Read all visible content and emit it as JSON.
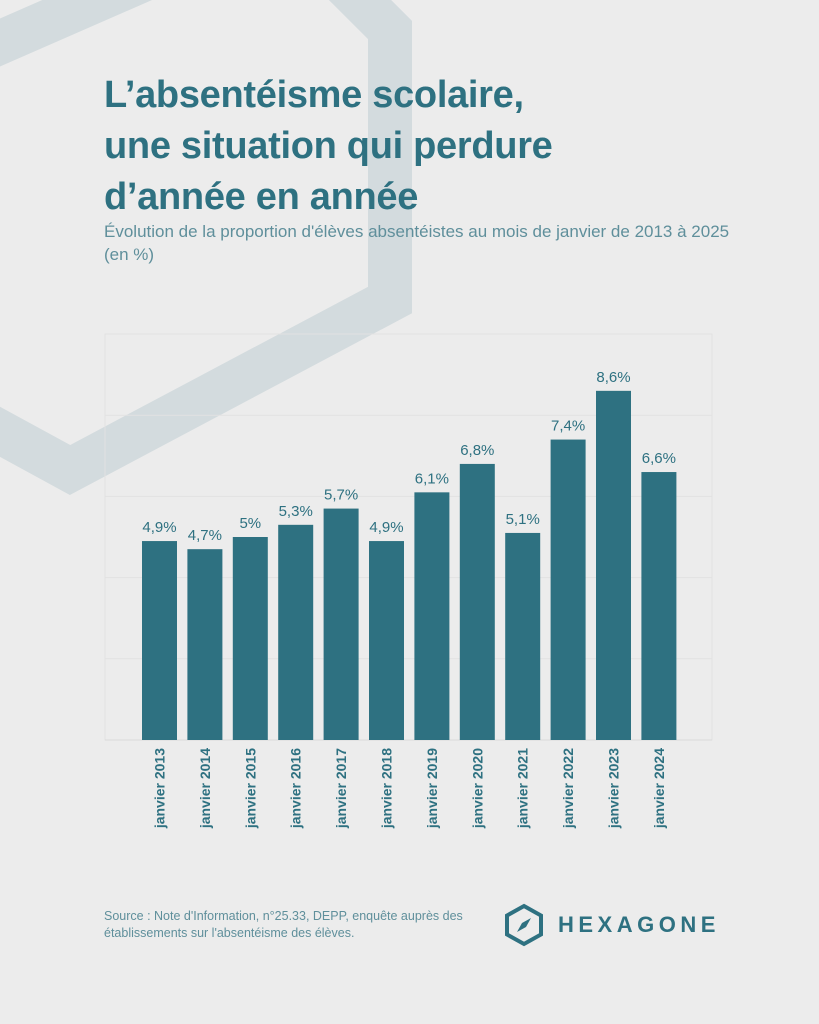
{
  "header": {
    "title_lines": [
      "L’absentéisme scolaire,",
      "une situation qui perdure",
      "d’année en année"
    ],
    "subtitle": "Évolution de la proportion d'élèves absentéistes au mois de janvier de 2013 à 2025 (en %)"
  },
  "chart_data": {
    "type": "bar",
    "categories": [
      "janvier 2013",
      "janvier 2014",
      "janvier 2015",
      "janvier 2016",
      "janvier 2017",
      "janvier 2018",
      "janvier 2019",
      "janvier 2020",
      "janvier 2021",
      "janvier 2022",
      "janvier 2023",
      "janvier 2024"
    ],
    "values": [
      4.9,
      4.7,
      5,
      5.3,
      5.7,
      4.9,
      6.1,
      6.8,
      5.1,
      7.4,
      8.6,
      6.6
    ],
    "labels": [
      "4,9%",
      "4,7%",
      "5%",
      "5,3%",
      "5,7%",
      "4,9%",
      "6,1%",
      "6,8%",
      "5,1%",
      "7,4%",
      "8,6%",
      "6,6%"
    ],
    "title": "",
    "xlabel": "",
    "ylabel": "",
    "ylim": [
      0,
      10
    ],
    "grid": true,
    "bar_color": "#2e7181"
  },
  "footer": {
    "source": "Source : Note d'Information, n°25.33, DEPP, enquête auprès des établissements sur l'absentéisme des élèves.",
    "brand": "HEXAGONE",
    "brand_icon": "hexagon-compass-icon"
  },
  "colors": {
    "accent": "#2e7181",
    "background": "#ececec",
    "muted_text": "#5f8f9b"
  }
}
